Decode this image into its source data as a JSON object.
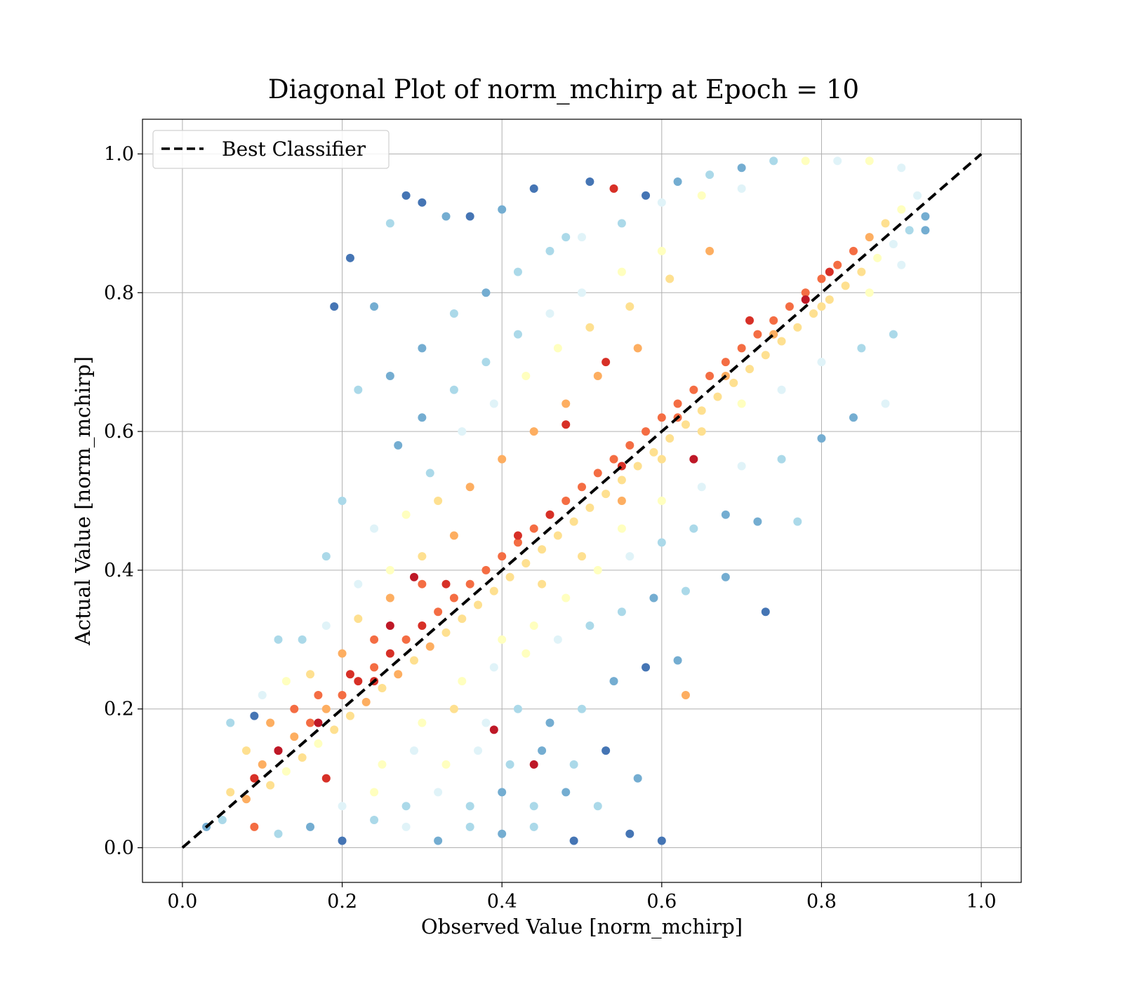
{
  "chart_data": {
    "type": "scatter",
    "title": "Diagonal Plot of norm_mchirp at Epoch = 10",
    "xlabel": "Observed Value [norm_mchirp]",
    "ylabel": "Actual Value [norm_mchirp]",
    "xlim": [
      -0.05,
      1.05
    ],
    "ylim": [
      -0.05,
      1.05
    ],
    "xticks": [
      "0.0",
      "0.2",
      "0.4",
      "0.6",
      "0.8",
      "1.0"
    ],
    "yticks": [
      "0.0",
      "0.2",
      "0.4",
      "0.6",
      "0.8",
      "1.0"
    ],
    "grid": true,
    "legend": {
      "position": "top-left",
      "entries": [
        "Best Classifier"
      ]
    },
    "reference_line": {
      "name": "Best Classifier",
      "x": [
        0.0,
        1.0
      ],
      "y": [
        0.0,
        1.0
      ],
      "style": "dashed",
      "color": "#000000"
    },
    "colormap": "RdYlBu_r",
    "colors": {
      "low": "#313695",
      "mid_low": "#74add1",
      "mid": "#ffffbf",
      "mid_high": "#fdae61",
      "high": "#a50026"
    },
    "points": [
      [
        0.03,
        0.03,
        0.2
      ],
      [
        0.05,
        0.04,
        0.3
      ],
      [
        0.06,
        0.08,
        0.6
      ],
      [
        0.08,
        0.07,
        0.7
      ],
      [
        0.09,
        0.1,
        0.8
      ],
      [
        0.1,
        0.12,
        0.7
      ],
      [
        0.11,
        0.09,
        0.6
      ],
      [
        0.12,
        0.14,
        0.9
      ],
      [
        0.13,
        0.11,
        0.5
      ],
      [
        0.14,
        0.16,
        0.7
      ],
      [
        0.15,
        0.13,
        0.6
      ],
      [
        0.16,
        0.18,
        0.8
      ],
      [
        0.17,
        0.15,
        0.5
      ],
      [
        0.18,
        0.2,
        0.7
      ],
      [
        0.19,
        0.17,
        0.6
      ],
      [
        0.2,
        0.22,
        0.8
      ],
      [
        0.21,
        0.19,
        0.6
      ],
      [
        0.22,
        0.24,
        0.9
      ],
      [
        0.23,
        0.21,
        0.7
      ],
      [
        0.24,
        0.26,
        0.8
      ],
      [
        0.25,
        0.23,
        0.6
      ],
      [
        0.26,
        0.28,
        0.9
      ],
      [
        0.27,
        0.25,
        0.7
      ],
      [
        0.28,
        0.3,
        0.8
      ],
      [
        0.29,
        0.27,
        0.6
      ],
      [
        0.3,
        0.32,
        0.9
      ],
      [
        0.31,
        0.29,
        0.7
      ],
      [
        0.32,
        0.34,
        0.8
      ],
      [
        0.33,
        0.31,
        0.6
      ],
      [
        0.34,
        0.36,
        0.8
      ],
      [
        0.35,
        0.33,
        0.6
      ],
      [
        0.36,
        0.38,
        0.8
      ],
      [
        0.37,
        0.35,
        0.6
      ],
      [
        0.38,
        0.4,
        0.8
      ],
      [
        0.39,
        0.37,
        0.6
      ],
      [
        0.4,
        0.42,
        0.8
      ],
      [
        0.41,
        0.39,
        0.6
      ],
      [
        0.42,
        0.44,
        0.8
      ],
      [
        0.43,
        0.41,
        0.6
      ],
      [
        0.44,
        0.46,
        0.8
      ],
      [
        0.45,
        0.43,
        0.6
      ],
      [
        0.46,
        0.48,
        0.8
      ],
      [
        0.47,
        0.45,
        0.6
      ],
      [
        0.48,
        0.5,
        0.8
      ],
      [
        0.49,
        0.47,
        0.6
      ],
      [
        0.5,
        0.52,
        0.8
      ],
      [
        0.51,
        0.49,
        0.6
      ],
      [
        0.52,
        0.54,
        0.8
      ],
      [
        0.53,
        0.51,
        0.6
      ],
      [
        0.54,
        0.56,
        0.8
      ],
      [
        0.55,
        0.53,
        0.6
      ],
      [
        0.56,
        0.58,
        0.8
      ],
      [
        0.57,
        0.55,
        0.6
      ],
      [
        0.58,
        0.6,
        0.8
      ],
      [
        0.59,
        0.57,
        0.6
      ],
      [
        0.6,
        0.62,
        0.8
      ],
      [
        0.61,
        0.59,
        0.6
      ],
      [
        0.62,
        0.64,
        0.8
      ],
      [
        0.63,
        0.61,
        0.6
      ],
      [
        0.64,
        0.66,
        0.8
      ],
      [
        0.65,
        0.63,
        0.6
      ],
      [
        0.66,
        0.68,
        0.8
      ],
      [
        0.67,
        0.65,
        0.6
      ],
      [
        0.68,
        0.7,
        0.8
      ],
      [
        0.69,
        0.67,
        0.6
      ],
      [
        0.7,
        0.72,
        0.8
      ],
      [
        0.71,
        0.69,
        0.6
      ],
      [
        0.72,
        0.74,
        0.8
      ],
      [
        0.73,
        0.71,
        0.6
      ],
      [
        0.74,
        0.76,
        0.8
      ],
      [
        0.75,
        0.73,
        0.6
      ],
      [
        0.76,
        0.78,
        0.8
      ],
      [
        0.77,
        0.75,
        0.6
      ],
      [
        0.78,
        0.8,
        0.8
      ],
      [
        0.79,
        0.77,
        0.6
      ],
      [
        0.8,
        0.82,
        0.8
      ],
      [
        0.81,
        0.79,
        0.6
      ],
      [
        0.82,
        0.84,
        0.8
      ],
      [
        0.83,
        0.81,
        0.6
      ],
      [
        0.84,
        0.86,
        0.8
      ],
      [
        0.85,
        0.83,
        0.6
      ],
      [
        0.86,
        0.88,
        0.7
      ],
      [
        0.87,
        0.85,
        0.5
      ],
      [
        0.88,
        0.9,
        0.6
      ],
      [
        0.89,
        0.87,
        0.4
      ],
      [
        0.9,
        0.92,
        0.5
      ],
      [
        0.91,
        0.89,
        0.3
      ],
      [
        0.92,
        0.94,
        0.4
      ],
      [
        0.93,
        0.91,
        0.2
      ],
      [
        0.06,
        0.18,
        0.3
      ],
      [
        0.09,
        0.19,
        0.1
      ],
      [
        0.12,
        0.3,
        0.3
      ],
      [
        0.19,
        0.78,
        0.1
      ],
      [
        0.21,
        0.85,
        0.1
      ],
      [
        0.24,
        0.78,
        0.2
      ],
      [
        0.26,
        0.9,
        0.3
      ],
      [
        0.28,
        0.94,
        0.1
      ],
      [
        0.3,
        0.93,
        0.1
      ],
      [
        0.33,
        0.91,
        0.2
      ],
      [
        0.36,
        0.91,
        0.1
      ],
      [
        0.4,
        0.92,
        0.2
      ],
      [
        0.44,
        0.95,
        0.1
      ],
      [
        0.48,
        0.88,
        0.3
      ],
      [
        0.51,
        0.96,
        0.1
      ],
      [
        0.54,
        0.95,
        0.9
      ],
      [
        0.58,
        0.94,
        0.1
      ],
      [
        0.62,
        0.96,
        0.2
      ],
      [
        0.66,
        0.97,
        0.3
      ],
      [
        0.7,
        0.98,
        0.2
      ],
      [
        0.74,
        0.99,
        0.3
      ],
      [
        0.78,
        0.99,
        0.5
      ],
      [
        0.82,
        0.99,
        0.4
      ],
      [
        0.86,
        0.99,
        0.5
      ],
      [
        0.9,
        0.98,
        0.4
      ],
      [
        0.3,
        0.72,
        0.2
      ],
      [
        0.34,
        0.77,
        0.3
      ],
      [
        0.38,
        0.8,
        0.2
      ],
      [
        0.42,
        0.83,
        0.3
      ],
      [
        0.46,
        0.86,
        0.3
      ],
      [
        0.5,
        0.88,
        0.4
      ],
      [
        0.55,
        0.9,
        0.3
      ],
      [
        0.6,
        0.93,
        0.4
      ],
      [
        0.65,
        0.94,
        0.5
      ],
      [
        0.7,
        0.95,
        0.4
      ],
      [
        0.22,
        0.66,
        0.3
      ],
      [
        0.26,
        0.68,
        0.2
      ],
      [
        0.3,
        0.62,
        0.2
      ],
      [
        0.34,
        0.66,
        0.3
      ],
      [
        0.38,
        0.7,
        0.3
      ],
      [
        0.42,
        0.74,
        0.3
      ],
      [
        0.46,
        0.77,
        0.4
      ],
      [
        0.5,
        0.8,
        0.4
      ],
      [
        0.55,
        0.83,
        0.5
      ],
      [
        0.6,
        0.86,
        0.5
      ],
      [
        0.27,
        0.58,
        0.2
      ],
      [
        0.31,
        0.54,
        0.3
      ],
      [
        0.35,
        0.6,
        0.4
      ],
      [
        0.39,
        0.64,
        0.4
      ],
      [
        0.43,
        0.68,
        0.5
      ],
      [
        0.47,
        0.72,
        0.5
      ],
      [
        0.51,
        0.75,
        0.6
      ],
      [
        0.56,
        0.78,
        0.6
      ],
      [
        0.61,
        0.82,
        0.6
      ],
      [
        0.66,
        0.86,
        0.7
      ],
      [
        0.2,
        0.5,
        0.3
      ],
      [
        0.24,
        0.46,
        0.4
      ],
      [
        0.28,
        0.48,
        0.5
      ],
      [
        0.32,
        0.5,
        0.6
      ],
      [
        0.36,
        0.52,
        0.7
      ],
      [
        0.4,
        0.56,
        0.7
      ],
      [
        0.44,
        0.6,
        0.7
      ],
      [
        0.48,
        0.64,
        0.7
      ],
      [
        0.52,
        0.68,
        0.7
      ],
      [
        0.57,
        0.72,
        0.7
      ],
      [
        0.18,
        0.42,
        0.3
      ],
      [
        0.22,
        0.38,
        0.4
      ],
      [
        0.26,
        0.4,
        0.5
      ],
      [
        0.3,
        0.42,
        0.6
      ],
      [
        0.34,
        0.45,
        0.7
      ],
      [
        0.15,
        0.3,
        0.3
      ],
      [
        0.18,
        0.32,
        0.4
      ],
      [
        0.22,
        0.33,
        0.6
      ],
      [
        0.26,
        0.36,
        0.7
      ],
      [
        0.3,
        0.38,
        0.8
      ],
      [
        0.1,
        0.22,
        0.4
      ],
      [
        0.13,
        0.24,
        0.5
      ],
      [
        0.16,
        0.25,
        0.6
      ],
      [
        0.2,
        0.28,
        0.7
      ],
      [
        0.24,
        0.3,
        0.8
      ],
      [
        0.08,
        0.14,
        0.6
      ],
      [
        0.11,
        0.18,
        0.7
      ],
      [
        0.14,
        0.2,
        0.8
      ],
      [
        0.17,
        0.22,
        0.8
      ],
      [
        0.21,
        0.25,
        0.9
      ],
      [
        0.12,
        0.02,
        0.3
      ],
      [
        0.16,
        0.03,
        0.2
      ],
      [
        0.2,
        0.01,
        0.1
      ],
      [
        0.24,
        0.04,
        0.3
      ],
      [
        0.28,
        0.03,
        0.4
      ],
      [
        0.32,
        0.01,
        0.2
      ],
      [
        0.36,
        0.03,
        0.3
      ],
      [
        0.4,
        0.02,
        0.2
      ],
      [
        0.44,
        0.03,
        0.3
      ],
      [
        0.49,
        0.01,
        0.1
      ],
      [
        0.2,
        0.06,
        0.4
      ],
      [
        0.24,
        0.08,
        0.5
      ],
      [
        0.28,
        0.06,
        0.3
      ],
      [
        0.32,
        0.08,
        0.4
      ],
      [
        0.36,
        0.06,
        0.3
      ],
      [
        0.4,
        0.08,
        0.2
      ],
      [
        0.44,
        0.06,
        0.3
      ],
      [
        0.48,
        0.08,
        0.2
      ],
      [
        0.52,
        0.06,
        0.3
      ],
      [
        0.56,
        0.02,
        0.1
      ],
      [
        0.25,
        0.12,
        0.5
      ],
      [
        0.29,
        0.14,
        0.4
      ],
      [
        0.33,
        0.12,
        0.5
      ],
      [
        0.37,
        0.14,
        0.4
      ],
      [
        0.41,
        0.12,
        0.3
      ],
      [
        0.45,
        0.14,
        0.2
      ],
      [
        0.49,
        0.12,
        0.3
      ],
      [
        0.53,
        0.14,
        0.1
      ],
      [
        0.57,
        0.1,
        0.2
      ],
      [
        0.6,
        0.01,
        0.1
      ],
      [
        0.3,
        0.18,
        0.5
      ],
      [
        0.34,
        0.2,
        0.6
      ],
      [
        0.38,
        0.18,
        0.4
      ],
      [
        0.42,
        0.2,
        0.3
      ],
      [
        0.46,
        0.18,
        0.2
      ],
      [
        0.5,
        0.2,
        0.3
      ],
      [
        0.54,
        0.24,
        0.2
      ],
      [
        0.58,
        0.26,
        0.1
      ],
      [
        0.62,
        0.27,
        0.2
      ],
      [
        0.63,
        0.22,
        0.7
      ],
      [
        0.35,
        0.24,
        0.5
      ],
      [
        0.39,
        0.26,
        0.4
      ],
      [
        0.43,
        0.28,
        0.5
      ],
      [
        0.47,
        0.3,
        0.4
      ],
      [
        0.51,
        0.32,
        0.3
      ],
      [
        0.55,
        0.34,
        0.3
      ],
      [
        0.59,
        0.36,
        0.2
      ],
      [
        0.63,
        0.37,
        0.3
      ],
      [
        0.68,
        0.39,
        0.2
      ],
      [
        0.73,
        0.34,
        0.1
      ],
      [
        0.4,
        0.3,
        0.5
      ],
      [
        0.44,
        0.32,
        0.5
      ],
      [
        0.48,
        0.36,
        0.5
      ],
      [
        0.52,
        0.4,
        0.5
      ],
      [
        0.56,
        0.42,
        0.4
      ],
      [
        0.6,
        0.44,
        0.3
      ],
      [
        0.64,
        0.46,
        0.3
      ],
      [
        0.68,
        0.48,
        0.2
      ],
      [
        0.72,
        0.47,
        0.2
      ],
      [
        0.77,
        0.47,
        0.3
      ],
      [
        0.45,
        0.38,
        0.6
      ],
      [
        0.5,
        0.42,
        0.6
      ],
      [
        0.55,
        0.46,
        0.5
      ],
      [
        0.6,
        0.5,
        0.5
      ],
      [
        0.65,
        0.52,
        0.4
      ],
      [
        0.7,
        0.55,
        0.4
      ],
      [
        0.75,
        0.56,
        0.3
      ],
      [
        0.8,
        0.59,
        0.2
      ],
      [
        0.84,
        0.62,
        0.2
      ],
      [
        0.88,
        0.64,
        0.4
      ],
      [
        0.55,
        0.5,
        0.7
      ],
      [
        0.6,
        0.56,
        0.6
      ],
      [
        0.65,
        0.6,
        0.6
      ],
      [
        0.7,
        0.64,
        0.5
      ],
      [
        0.75,
        0.66,
        0.4
      ],
      [
        0.8,
        0.7,
        0.4
      ],
      [
        0.85,
        0.72,
        0.3
      ],
      [
        0.89,
        0.74,
        0.3
      ],
      [
        0.62,
        0.62,
        0.8
      ],
      [
        0.68,
        0.68,
        0.7
      ],
      [
        0.74,
        0.74,
        0.7
      ],
      [
        0.8,
        0.78,
        0.6
      ],
      [
        0.86,
        0.8,
        0.5
      ],
      [
        0.9,
        0.84,
        0.4
      ],
      [
        0.93,
        0.89,
        0.2
      ],
      [
        0.09,
        0.03,
        0.8
      ],
      [
        0.17,
        0.18,
        0.95
      ],
      [
        0.12,
        0.14,
        0.95
      ],
      [
        0.18,
        0.1,
        0.9
      ],
      [
        0.24,
        0.24,
        0.9
      ],
      [
        0.29,
        0.39,
        0.95
      ],
      [
        0.33,
        0.38,
        0.9
      ],
      [
        0.39,
        0.17,
        0.95
      ],
      [
        0.44,
        0.12,
        0.95
      ],
      [
        0.42,
        0.45,
        0.9
      ],
      [
        0.46,
        0.48,
        0.9
      ],
      [
        0.55,
        0.55,
        0.9
      ],
      [
        0.64,
        0.56,
        0.95
      ],
      [
        0.71,
        0.76,
        0.9
      ],
      [
        0.78,
        0.79,
        0.95
      ],
      [
        0.81,
        0.83,
        0.9
      ],
      [
        0.48,
        0.61,
        0.9
      ],
      [
        0.53,
        0.7,
        0.9
      ],
      [
        0.26,
        0.32,
        0.95
      ],
      [
        0.09,
        0.1,
        0.9
      ]
    ]
  }
}
